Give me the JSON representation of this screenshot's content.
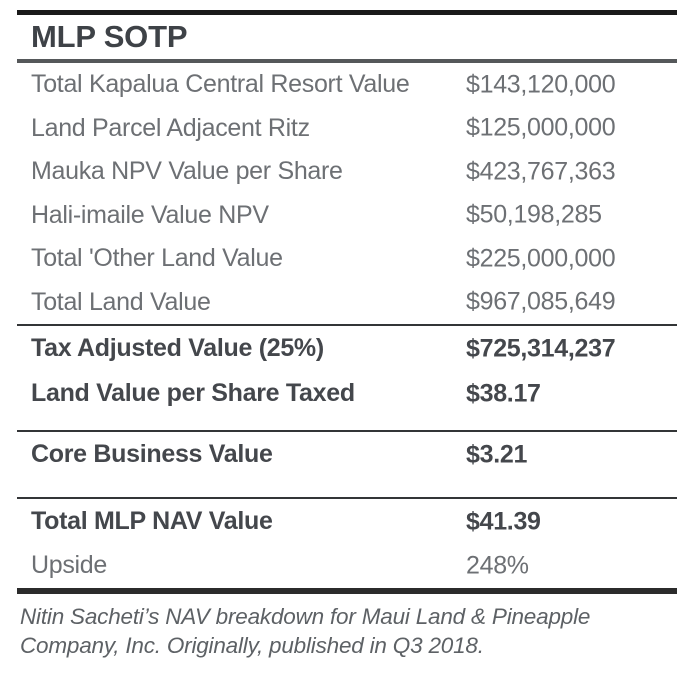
{
  "table": {
    "title": "MLP SOTP",
    "rows": [
      {
        "label": "Total Kapalua Central Resort Value",
        "value": "$143,120,000",
        "bold": false
      },
      {
        "label": "Land Parcel Adjacent Ritz",
        "value": "$125,000,000",
        "bold": false
      },
      {
        "label": "Mauka NPV Value per Share",
        "value": "$423,767,363",
        "bold": false
      },
      {
        "label": "Hali-imaile Value NPV",
        "value": "$50,198,285",
        "bold": false
      },
      {
        "label": "Total 'Other Land Value",
        "value": "$225,000,000",
        "bold": false
      },
      {
        "label": "Total Land Value",
        "value": "$967,085,649",
        "bold": false
      },
      {
        "label": "Tax Adjusted Value (25%)",
        "value": "$725,314,237",
        "bold": true
      },
      {
        "label": "Land Value per Share Taxed",
        "value": "$38.17",
        "bold": true
      },
      {
        "label": "Core Business Value",
        "value": "$3.21",
        "bold": true
      },
      {
        "label": "Total MLP NAV Value",
        "value": "$41.39",
        "bold": true
      },
      {
        "label": "Upside",
        "value": "248%",
        "bold": false
      }
    ],
    "caption": "Nitin Sacheti’s NAV breakdown for Maui Land & Pineapple Company, Inc. Originally, published in Q3 2018."
  },
  "colors": {
    "background": "#ffffff",
    "title_text": "#3e4247",
    "regular_text": "#6d7074",
    "bold_text": "#44474c",
    "caption_text": "#5d6165",
    "top_rule": "#1a1a1a",
    "title_rule": "#55585a",
    "thin_rule": "#333537",
    "bottom_rule": "#2b2b2b"
  }
}
